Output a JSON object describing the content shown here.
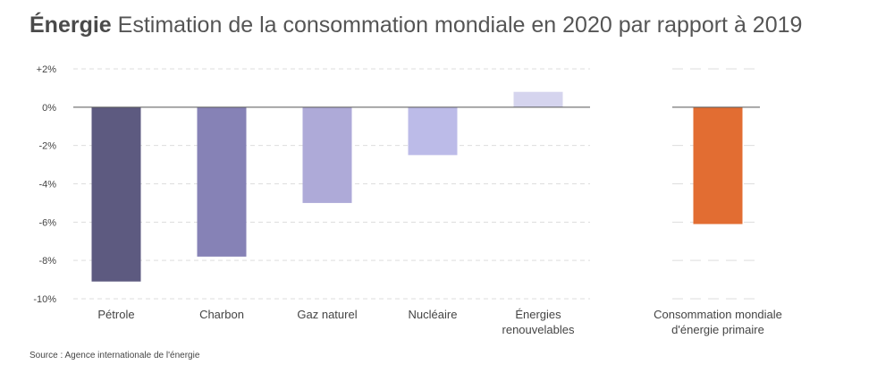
{
  "title": {
    "keyword": "Énergie",
    "text": "Estimation de la consommation mondiale en 2020 par rapport à 2019"
  },
  "source": "Source : Agence internationale de l'énergie",
  "chart_data": {
    "type": "bar",
    "title": "Énergie Estimation de la consommation mondiale en 2020 par rapport à 2019",
    "ylim": [
      -10,
      2
    ],
    "yticks": [
      {
        "value": 2,
        "label": "+2%"
      },
      {
        "value": 0,
        "label": "0%"
      },
      {
        "value": -2,
        "label": "-2%"
      },
      {
        "value": -4,
        "label": "-4%"
      },
      {
        "value": -6,
        "label": "-6%"
      },
      {
        "value": -8,
        "label": "-8%"
      },
      {
        "value": -10,
        "label": "-10%"
      }
    ],
    "grid": true,
    "categories": [
      [
        "Pétrole"
      ],
      [
        "Charbon"
      ],
      [
        "Gaz naturel"
      ],
      [
        "Nucléaire"
      ],
      [
        "Énergies",
        "renouvelables"
      ],
      [
        "Consommation mondiale",
        "d'énergie primaire"
      ]
    ],
    "values": [
      -9.1,
      -7.8,
      -5.0,
      -2.5,
      0.8,
      -6.1
    ],
    "colors": [
      "#5d5a80",
      "#8682b6",
      "#aeaad8",
      "#bcbbe8",
      "#d5d4ee",
      "#e26d32"
    ]
  }
}
